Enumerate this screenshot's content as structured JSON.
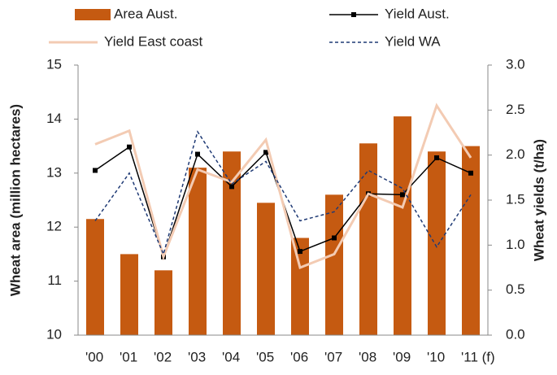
{
  "chart_data": {
    "type": "bar-line",
    "categories": [
      "'00",
      "'01",
      "'02",
      "'03",
      "'04",
      "'05",
      "'06",
      "'07",
      "'08",
      "'09",
      "'10",
      "'11 (f)"
    ],
    "ylabel": "Wheat area (million hectares)",
    "y2label": "Wheat yields (t/ha)",
    "ylim": [
      10,
      15
    ],
    "yticks": [
      10,
      11,
      12,
      13,
      14,
      15
    ],
    "y2lim": [
      0,
      3
    ],
    "y2ticks": [
      {
        "value": 0,
        "label": "0.0"
      },
      0.5,
      {
        "value": 1,
        "label": "1.0"
      },
      1.5,
      {
        "value": 2,
        "label": "2.0"
      },
      2.5,
      {
        "value": 3,
        "label": "3.0"
      }
    ],
    "series": [
      {
        "name": "Area  Aust.",
        "kind": "bar",
        "color": "#c55a11",
        "values": [
          12.15,
          11.5,
          11.2,
          13.1,
          13.4,
          12.45,
          11.8,
          12.6,
          13.55,
          14.05,
          13.4,
          13.5
        ]
      },
      {
        "name": "Yield Aust.",
        "kind": "line",
        "axis": "y2",
        "color": "#000000",
        "marker": "square",
        "values": [
          1.83,
          2.09,
          0.87,
          2.01,
          1.65,
          2.03,
          0.93,
          1.08,
          1.57,
          1.56,
          1.97,
          1.8
        ]
      },
      {
        "name": "Yield East coast",
        "kind": "line",
        "axis": "y2",
        "color": "#f3cbb3",
        "width": 3,
        "values": [
          2.12,
          2.27,
          0.87,
          1.84,
          1.7,
          2.17,
          0.75,
          0.9,
          1.57,
          1.42,
          2.55,
          1.97
        ]
      },
      {
        "name": "Yield WA",
        "kind": "line",
        "axis": "y2",
        "color": "#1f3a75",
        "dashed": true,
        "values": [
          1.27,
          1.8,
          0.9,
          2.26,
          1.68,
          1.93,
          1.27,
          1.37,
          1.83,
          1.63,
          0.98,
          1.56
        ]
      }
    ]
  }
}
